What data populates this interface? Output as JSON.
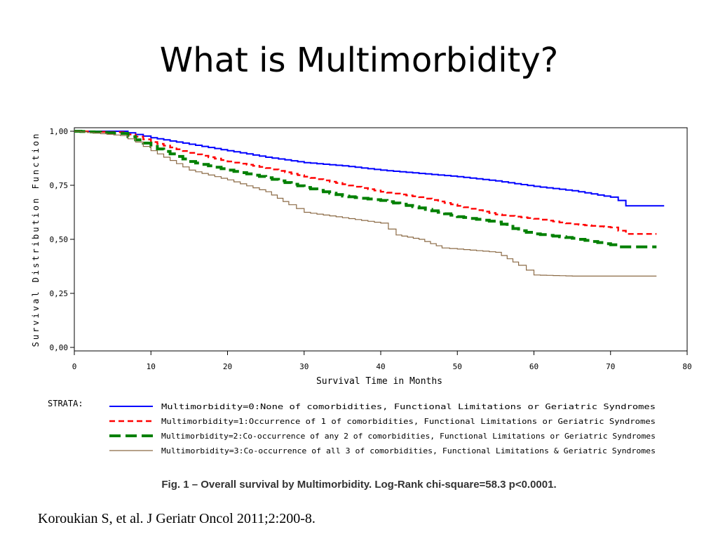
{
  "slide": {
    "title": "What is Multimorbidity?",
    "caption": "Fig. 1 – Overall survival by Multimorbidity. Log-Rank chi-square=58.3 p<0.0001.",
    "citation": "Koroukian S, et al. J Geriatr Oncol 2011;2:200-8."
  },
  "chart_data": {
    "type": "line",
    "title": "",
    "xlabel": "Survival Time in Months",
    "ylabel": "Survival Distribution Function",
    "xlim": [
      0,
      80
    ],
    "ylim": [
      0,
      1
    ],
    "x_ticks": [
      "0",
      "10",
      "20",
      "30",
      "40",
      "50",
      "60",
      "70",
      "80"
    ],
    "y_ticks": [
      "0,00",
      "0,25",
      "0,50",
      "0,75",
      "1,00"
    ],
    "y_tick_values": [
      0,
      0.25,
      0.5,
      0.75,
      1.0
    ],
    "legend_title": "STRATA:",
    "legend_placement": "bottom",
    "grid": false,
    "series": [
      {
        "name": "Multimorbidity=0:None of comorbidities, Functional Limitations or Geriatric Syndromes",
        "color": "#0000ff",
        "style": "solid",
        "points": [
          [
            0,
            1.0
          ],
          [
            6,
            1.0
          ],
          [
            8,
            0.985
          ],
          [
            10,
            0.97
          ],
          [
            15,
            0.94
          ],
          [
            20,
            0.91
          ],
          [
            25,
            0.88
          ],
          [
            30,
            0.855
          ],
          [
            35,
            0.84
          ],
          [
            40,
            0.82
          ],
          [
            45,
            0.805
          ],
          [
            50,
            0.79
          ],
          [
            55,
            0.77
          ],
          [
            60,
            0.745
          ],
          [
            65,
            0.725
          ],
          [
            70,
            0.695
          ],
          [
            71,
            0.68
          ],
          [
            72,
            0.655
          ],
          [
            77,
            0.655
          ]
        ]
      },
      {
        "name": "Multimorbidity=1:Occurrence of 1 of comorbidities, Functional Limitations or Geriatric Syndromes",
        "color": "#ff0000",
        "style": "dotted",
        "points": [
          [
            0,
            1.0
          ],
          [
            6,
            0.995
          ],
          [
            8,
            0.975
          ],
          [
            10,
            0.95
          ],
          [
            15,
            0.9
          ],
          [
            20,
            0.86
          ],
          [
            25,
            0.83
          ],
          [
            30,
            0.79
          ],
          [
            35,
            0.755
          ],
          [
            40,
            0.72
          ],
          [
            45,
            0.695
          ],
          [
            50,
            0.655
          ],
          [
            55,
            0.615
          ],
          [
            60,
            0.595
          ],
          [
            65,
            0.57
          ],
          [
            70,
            0.555
          ],
          [
            72,
            0.525
          ],
          [
            76,
            0.525
          ]
        ]
      },
      {
        "name": "Multimorbidity=2:Co-occurrence of any 2 of comorbidities, Functional Limitations or Geriatric Syndromes",
        "color": "#008000",
        "style": "dashed",
        "points": [
          [
            0,
            1.0
          ],
          [
            6,
            0.99
          ],
          [
            8,
            0.96
          ],
          [
            10,
            0.93
          ],
          [
            15,
            0.86
          ],
          [
            20,
            0.82
          ],
          [
            25,
            0.785
          ],
          [
            30,
            0.74
          ],
          [
            35,
            0.7
          ],
          [
            40,
            0.68
          ],
          [
            45,
            0.645
          ],
          [
            50,
            0.605
          ],
          [
            55,
            0.58
          ],
          [
            58,
            0.54
          ],
          [
            60,
            0.525
          ],
          [
            65,
            0.505
          ],
          [
            70,
            0.475
          ],
          [
            71,
            0.465
          ],
          [
            76,
            0.465
          ]
        ]
      },
      {
        "name": "Multimorbidity=3:Co-occurrence of all 3 of comorbidities, Functional Limitations & Geriatric Syndromes",
        "color": "#8b6a45",
        "style": "thin",
        "points": [
          [
            0,
            1.0
          ],
          [
            6,
            0.98
          ],
          [
            8,
            0.95
          ],
          [
            10,
            0.91
          ],
          [
            15,
            0.82
          ],
          [
            20,
            0.775
          ],
          [
            25,
            0.72
          ],
          [
            28,
            0.66
          ],
          [
            30,
            0.625
          ],
          [
            35,
            0.6
          ],
          [
            40,
            0.575
          ],
          [
            42,
            0.52
          ],
          [
            45,
            0.5
          ],
          [
            48,
            0.46
          ],
          [
            50,
            0.455
          ],
          [
            55,
            0.44
          ],
          [
            58,
            0.38
          ],
          [
            60,
            0.335
          ],
          [
            65,
            0.33
          ],
          [
            70,
            0.33
          ],
          [
            76,
            0.33
          ]
        ]
      }
    ]
  }
}
